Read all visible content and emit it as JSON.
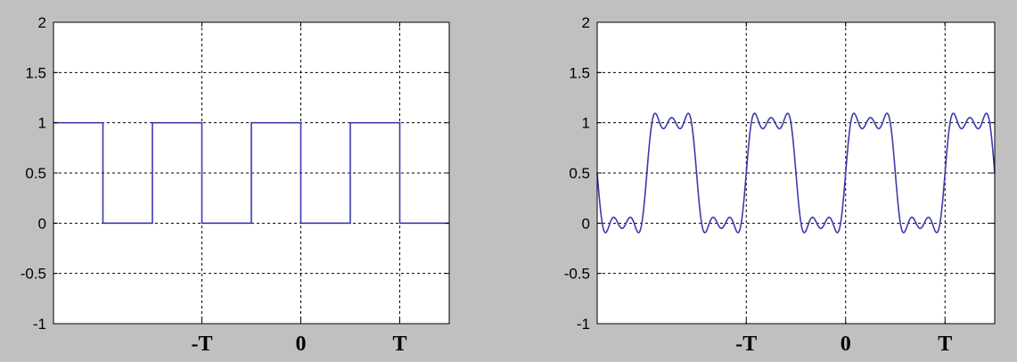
{
  "colors": {
    "background": "#c0c0c0",
    "axes_face": "#ffffff",
    "line": "#3b3bb0",
    "grid": "#000000"
  },
  "chart_data": [
    {
      "type": "line",
      "title": "",
      "xlabel": "",
      "ylabel": "",
      "grid": true,
      "ylim": [
        -1,
        2
      ],
      "xlim": [
        -2.5,
        1.5
      ],
      "y_ticks": [
        "2",
        "1.5",
        "1",
        "0.5",
        "0",
        "-0.5",
        "-1"
      ],
      "y_tick_values": [
        2,
        1.5,
        1,
        0.5,
        0,
        -0.5,
        -1
      ],
      "x_ticks": [
        "-T",
        "0",
        "T"
      ],
      "x_tick_values": [
        -1,
        0,
        1
      ],
      "series": [
        {
          "x": [
            -2.5,
            -2.0,
            -2.0,
            -1.5,
            -1.5,
            -1.0,
            -1.0,
            -0.5,
            -0.5,
            0.0,
            0.0,
            0.5,
            0.5,
            1.0,
            1.0,
            1.5
          ],
          "y": [
            1,
            1,
            0,
            0,
            1,
            1,
            0,
            0,
            1,
            1,
            0,
            0,
            1,
            1,
            0,
            0
          ]
        }
      ]
    },
    {
      "type": "line",
      "title": "",
      "xlabel": "",
      "ylabel": "",
      "grid": true,
      "ylim": [
        -1,
        2
      ],
      "xlim": [
        -2.5,
        1.5
      ],
      "y_ticks": [
        "2",
        "1.5",
        "1",
        "0.5",
        "0",
        "-0.5",
        "-1"
      ],
      "y_tick_values": [
        2,
        1.5,
        1,
        0.5,
        0,
        -0.5,
        -1
      ],
      "x_ticks": [
        "-T",
        "0",
        "T"
      ],
      "x_tick_values": [
        -1,
        0,
        1
      ],
      "series": [
        {
          "form": "fourier_square_wave",
          "period": 1,
          "mean": 0.5,
          "harmonics": [
            1,
            3,
            5
          ]
        }
      ]
    }
  ]
}
